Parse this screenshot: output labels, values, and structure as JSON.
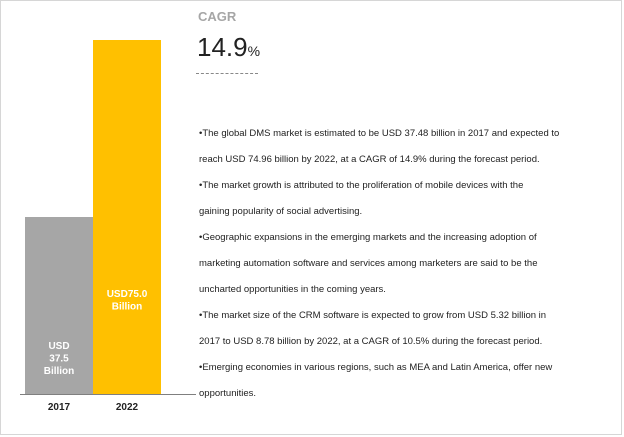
{
  "header": {
    "cagr_label": "CAGR",
    "cagr_value": "14.9",
    "cagr_unit": "%"
  },
  "chart_data": {
    "type": "bar",
    "categories": [
      "2017",
      "2022"
    ],
    "values": [
      37.5,
      75.0
    ],
    "data_labels": [
      [
        "USD",
        "37.5",
        "Billion"
      ],
      [
        "USD75.0",
        "Billion"
      ]
    ],
    "colors": [
      "#a6a6a6",
      "#ffc000"
    ],
    "label_colors": [
      "#ffffff",
      "#ffffff"
    ],
    "ylim": [
      0,
      75.0
    ],
    "grid": false
  },
  "bullets": [
    "•The global DMS market is estimated to be USD 37.48 billion in 2017 and expected to",
    "reach USD 74.96 billion by 2022, at a CAGR of 14.9% during the forecast period.",
    "•The market growth is attributed to the proliferation of mobile devices with the",
    "gaining popularity of social advertising.",
    "•Geographic expansions in the emerging markets and the increasing adoption of",
    "marketing automation software and services among marketers are said to be the",
    "uncharted opportunities in the coming years.",
    "•The market size of the CRM software is expected to grow from USD 5.32 billion in",
    "2017 to USD 8.78 billion by 2022, at a CAGR of 10.5% during the forecast period.",
    "•Emerging economies in various regions, such as MEA and Latin America, offer new",
    "opportunities."
  ]
}
